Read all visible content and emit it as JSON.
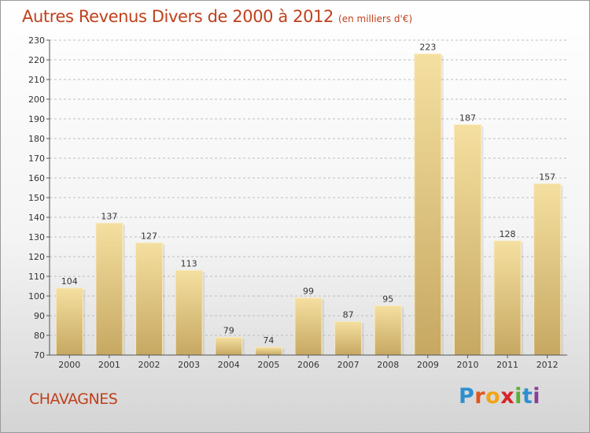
{
  "header": {
    "title": "Autres Revenus Divers de 2000 à 2012",
    "subtitle": "(en milliers d'€)"
  },
  "footer": {
    "commune": "CHAVAGNES",
    "logo_letters": [
      "P",
      "r",
      "o",
      "x",
      "i",
      "t",
      "i"
    ],
    "logo_colors": [
      "#2e8fd0",
      "#e0561c",
      "#f2a416",
      "#d8232a",
      "#5cae33",
      "#2e8fd0",
      "#8a3d97"
    ]
  },
  "colors": {
    "title": "#c0401c",
    "bar_light": "#f5dfa0",
    "bar_dark": "#c6a862",
    "grid": "#bdbdbd",
    "axis": "#555555"
  },
  "chart_data": {
    "type": "bar",
    "categories": [
      "2000",
      "2001",
      "2002",
      "2003",
      "2004",
      "2005",
      "2006",
      "2007",
      "2008",
      "2009",
      "2010",
      "2011",
      "2012"
    ],
    "values": [
      104,
      137,
      127,
      113,
      79,
      74,
      99,
      87,
      95,
      223,
      187,
      128,
      157
    ],
    "title": "Autres Revenus Divers de 2000 à 2012",
    "subtitle": "(en milliers d'€)",
    "xlabel": "",
    "ylabel": "",
    "ylim": [
      70,
      230
    ],
    "ytick_step": 10,
    "grid": "horizontal dashed",
    "legend": "none",
    "data_labels": true
  }
}
